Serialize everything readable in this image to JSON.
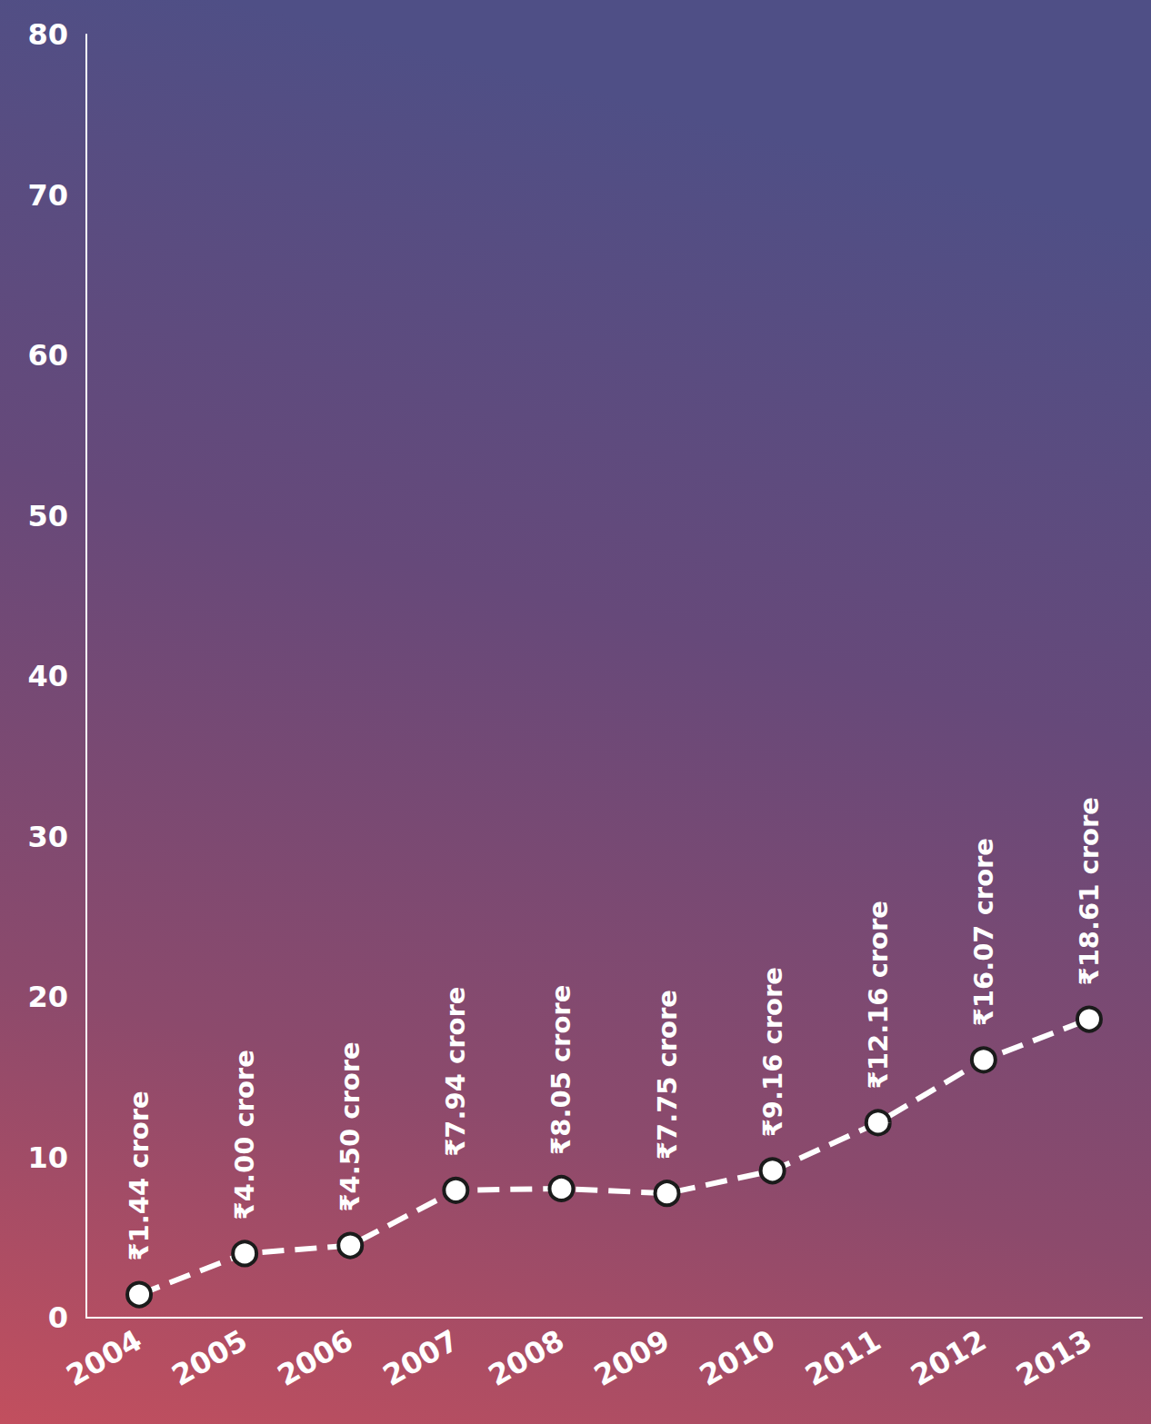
{
  "chart_data": {
    "type": "line",
    "categories": [
      "2004",
      "2005",
      "2006",
      "2007",
      "2008",
      "2009",
      "2010",
      "2011",
      "2012",
      "2013"
    ],
    "values": [
      1.44,
      4.0,
      4.5,
      7.94,
      8.05,
      7.75,
      9.16,
      12.16,
      16.07,
      18.61
    ],
    "value_labels": [
      "₹1.44 crore",
      "₹4.00 crore",
      "₹4.50 crore",
      "₹7.94 crore",
      "₹8.05 crore",
      "₹7.75 crore",
      "₹9.16 crore",
      "₹12.16 crore",
      "₹16.07 crore",
      "₹18.61 crore"
    ],
    "color": "#ffffff",
    "marker": "circle",
    "line_style": "dashed",
    "data_labels": true,
    "grid": false,
    "ylim": [
      0,
      80
    ],
    "yticks": [
      0,
      10,
      20,
      30,
      40,
      50,
      60,
      70,
      80
    ]
  }
}
